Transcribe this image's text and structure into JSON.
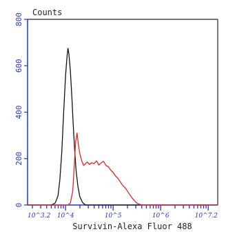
{
  "chart_data": {
    "type": "line",
    "title": "",
    "ylabel": "Counts",
    "xlabel": "Survivin-Alexa Fluor 488",
    "x_scale": "log",
    "xlim_log10": [
      3.2,
      7.2
    ],
    "ylim": [
      0,
      800
    ],
    "yticks": [
      0,
      200,
      400,
      600,
      800
    ],
    "y_tick_labels": [
      "0",
      "200",
      "400",
      "600",
      "800"
    ],
    "x_tick_labels": [
      "10^3.2",
      "10^4",
      "10^5",
      "10^6",
      "10^7.2"
    ],
    "x_tick_log10": [
      3.2,
      4,
      5,
      6,
      7.2
    ],
    "grid": false,
    "legend": "none",
    "series": [
      {
        "color": "#111111",
        "points": [
          [
            3.2,
            0
          ],
          [
            3.7,
            0
          ],
          [
            3.78,
            8
          ],
          [
            3.84,
            40
          ],
          [
            3.88,
            110
          ],
          [
            3.92,
            230
          ],
          [
            3.96,
            400
          ],
          [
            4.0,
            560
          ],
          [
            4.03,
            640
          ],
          [
            4.05,
            675
          ],
          [
            4.07,
            650
          ],
          [
            4.1,
            580
          ],
          [
            4.13,
            470
          ],
          [
            4.16,
            350
          ],
          [
            4.19,
            240
          ],
          [
            4.22,
            150
          ],
          [
            4.26,
            80
          ],
          [
            4.3,
            35
          ],
          [
            4.36,
            10
          ],
          [
            4.42,
            0
          ],
          [
            7.2,
            0
          ]
        ]
      },
      {
        "color": "#e32222",
        "points": [
          [
            3.2,
            0
          ],
          [
            4.05,
            0
          ],
          [
            4.1,
            8
          ],
          [
            4.15,
            60
          ],
          [
            4.18,
            160
          ],
          [
            4.21,
            270
          ],
          [
            4.24,
            310
          ],
          [
            4.27,
            260
          ],
          [
            4.3,
            220
          ],
          [
            4.34,
            190
          ],
          [
            4.38,
            170
          ],
          [
            4.42,
            178
          ],
          [
            4.46,
            185
          ],
          [
            4.5,
            175
          ],
          [
            4.55,
            182
          ],
          [
            4.6,
            178
          ],
          [
            4.65,
            190
          ],
          [
            4.7,
            172
          ],
          [
            4.75,
            182
          ],
          [
            4.8,
            188
          ],
          [
            4.85,
            170
          ],
          [
            4.9,
            165
          ],
          [
            4.95,
            150
          ],
          [
            5.0,
            140
          ],
          [
            5.05,
            125
          ],
          [
            5.1,
            115
          ],
          [
            5.15,
            100
          ],
          [
            5.2,
            85
          ],
          [
            5.25,
            75
          ],
          [
            5.3,
            60
          ],
          [
            5.35,
            45
          ],
          [
            5.4,
            30
          ],
          [
            5.45,
            18
          ],
          [
            5.5,
            8
          ],
          [
            5.55,
            4
          ],
          [
            5.6,
            0
          ],
          [
            7.2,
            0
          ]
        ]
      }
    ]
  }
}
